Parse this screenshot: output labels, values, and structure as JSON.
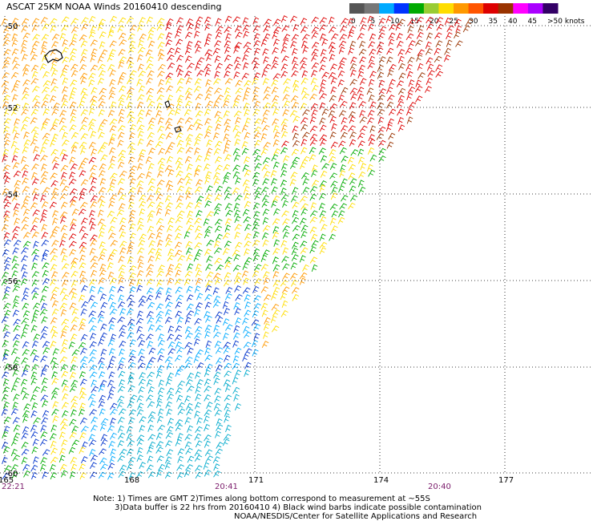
{
  "title": "ASCAT 25KM NOAA Winds 20160410 descending",
  "legend": {
    "ticks": [
      "0",
      "5",
      "10",
      "15",
      "20",
      "25",
      "30",
      "35",
      "40",
      "45",
      ">50 knots"
    ],
    "colors": [
      "#555555",
      "#777777",
      "#00aaff",
      "#0033ff",
      "#00aa00",
      "#99cc33",
      "#ffdd00",
      "#ff9900",
      "#ff5500",
      "#dd0000",
      "#993300",
      "#ff00ff",
      "#aa00ff",
      "#330066"
    ]
  },
  "axes": {
    "lat_labels": [
      "-50",
      "-52",
      "-54",
      "-56",
      "-58",
      "-60"
    ],
    "lon_labels": [
      "165",
      "168",
      "171",
      "174",
      "177"
    ]
  },
  "times": [
    "22:21",
    "20:41",
    "20:40"
  ],
  "notes": {
    "line1": "Note: 1) Times are GMT 2)Times along bottom correspond to measurement at ~55S",
    "line2": "3)Data buffer is 22 hrs from 20160410 4) Black wind barbs indicate possible contamination",
    "line3": "NOAA/NESDIS/Center for Satellite Applications and Research"
  }
}
